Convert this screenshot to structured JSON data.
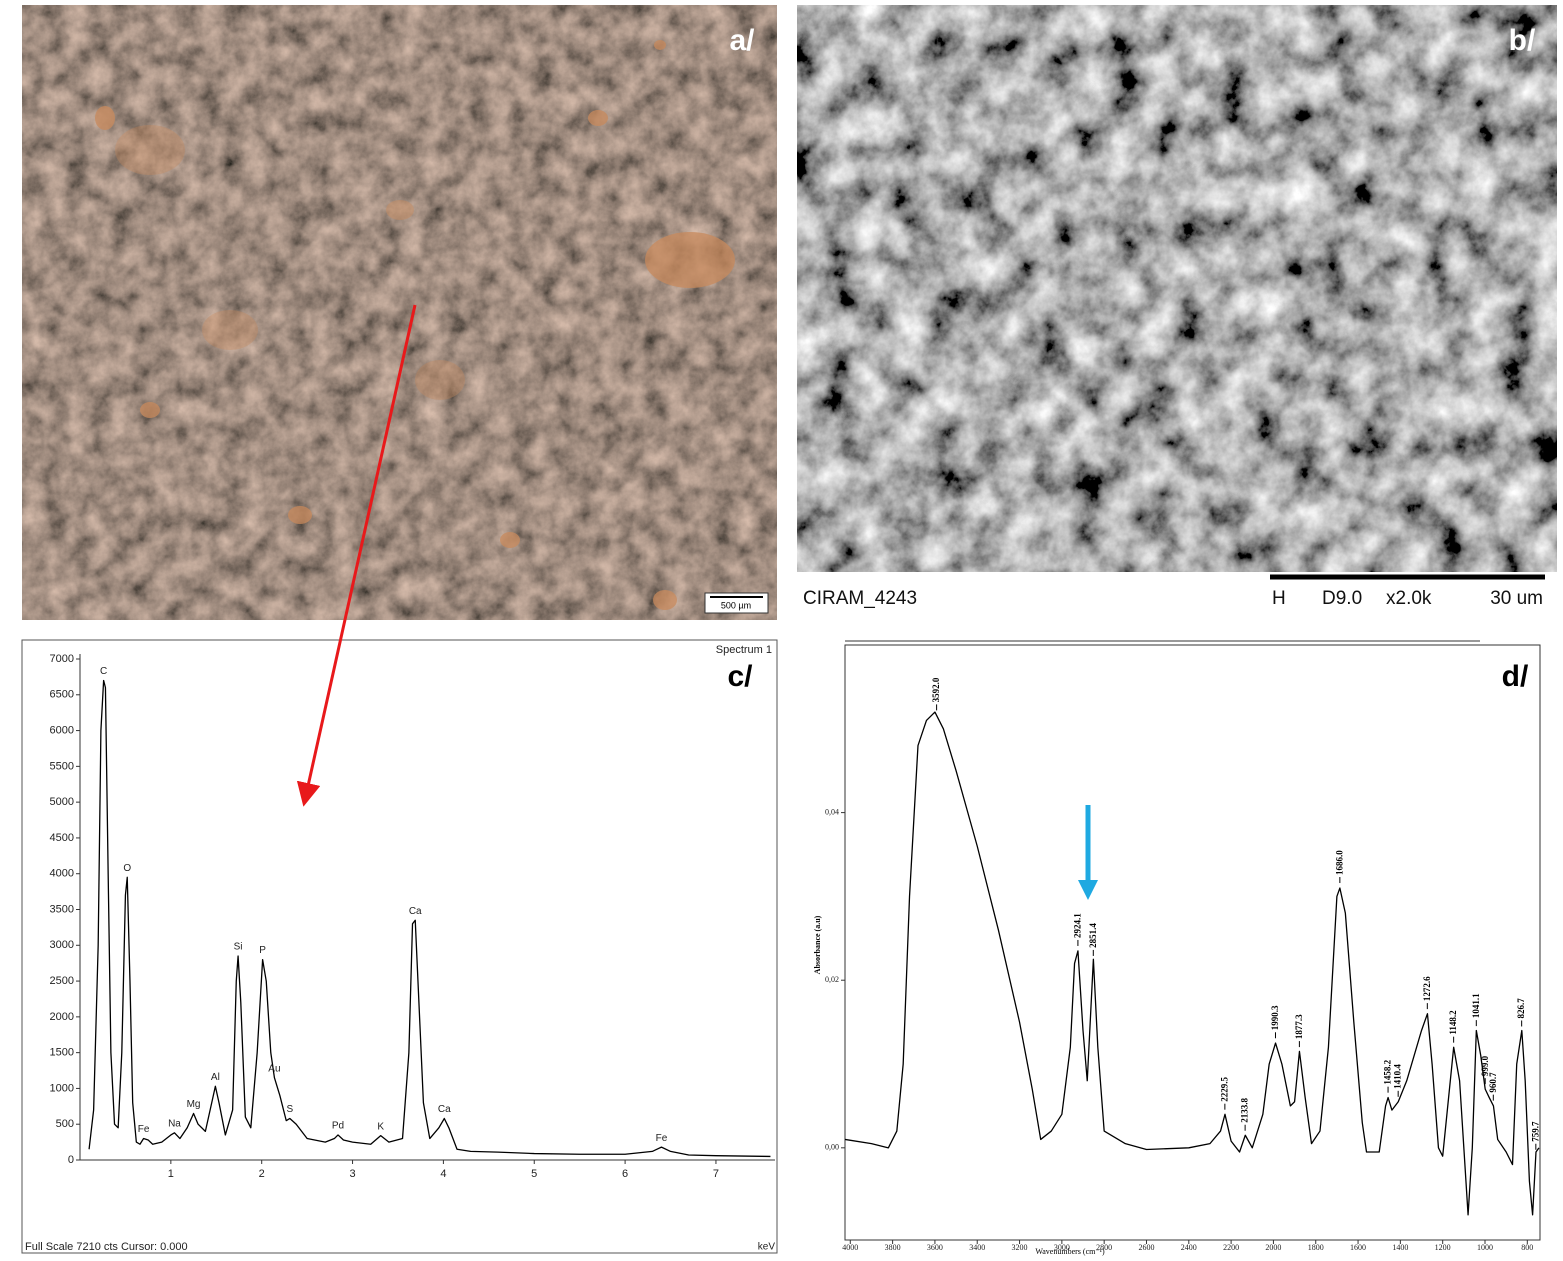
{
  "photos": {
    "a": {
      "label": "a/",
      "scale_bar": "500 µm"
    },
    "b": {
      "label": "b/",
      "caption": "CIRAM_4243",
      "detector": "H",
      "distance": "D9.0",
      "magnification": "x2.0k",
      "scale": "30 um"
    }
  },
  "chart_data": [
    {
      "type": "line",
      "panel_label": "c/",
      "title": "Spectrum 1",
      "footer": "Full Scale 7210 cts Cursor: 0.000",
      "xlabel": "keV",
      "color": "#000000",
      "x": [
        0.1,
        0.15,
        0.2,
        0.23,
        0.26,
        0.28,
        0.31,
        0.34,
        0.38,
        0.42,
        0.46,
        0.5,
        0.52,
        0.55,
        0.58,
        0.62,
        0.66,
        0.7,
        0.75,
        0.8,
        0.9,
        1.0,
        1.04,
        1.1,
        1.18,
        1.25,
        1.3,
        1.38,
        1.45,
        1.49,
        1.53,
        1.6,
        1.68,
        1.72,
        1.74,
        1.77,
        1.82,
        1.88,
        1.95,
        2.01,
        2.05,
        2.1,
        2.14,
        2.2,
        2.27,
        2.31,
        2.38,
        2.5,
        2.7,
        2.8,
        2.84,
        2.9,
        3.0,
        3.2,
        3.31,
        3.4,
        3.55,
        3.62,
        3.66,
        3.69,
        3.72,
        3.78,
        3.85,
        3.95,
        4.01,
        4.06,
        4.15,
        4.3,
        4.6,
        5.0,
        5.5,
        6.0,
        6.3,
        6.4,
        6.5,
        6.7,
        7.0,
        7.6
      ],
      "values": [
        150,
        700,
        3000,
        6000,
        6700,
        6600,
        4000,
        1500,
        500,
        450,
        1500,
        3700,
        3950,
        2500,
        800,
        250,
        220,
        300,
        280,
        220,
        250,
        350,
        380,
        300,
        450,
        650,
        500,
        400,
        800,
        1030,
        800,
        350,
        700,
        2500,
        2850,
        2200,
        600,
        450,
        1500,
        2800,
        2500,
        1500,
        1150,
        900,
        550,
        580,
        500,
        300,
        250,
        300,
        350,
        280,
        250,
        220,
        340,
        250,
        300,
        1500,
        3300,
        3350,
        2500,
        800,
        300,
        450,
        580,
        450,
        150,
        120,
        110,
        90,
        80,
        80,
        120,
        180,
        120,
        70,
        60,
        50
      ],
      "xlim": [
        0,
        7.65
      ],
      "ylim": [
        0,
        7000
      ],
      "xticks": [
        1,
        2,
        3,
        4,
        5,
        6,
        7
      ],
      "yticks": [
        0,
        500,
        1000,
        1500,
        2000,
        2500,
        3000,
        3500,
        4000,
        4500,
        5000,
        5500,
        6000,
        6500,
        7000
      ],
      "annotations": [
        {
          "text": "C",
          "x": 0.26
        },
        {
          "text": "O",
          "x": 0.52
        },
        {
          "text": "Fe",
          "x": 0.7
        },
        {
          "text": "Na",
          "x": 1.04
        },
        {
          "text": "Mg",
          "x": 1.25
        },
        {
          "text": "Al",
          "x": 1.49
        },
        {
          "text": "Si",
          "x": 1.74
        },
        {
          "text": "P",
          "x": 2.01
        },
        {
          "text": "Au",
          "x": 2.14
        },
        {
          "text": "S",
          "x": 2.31
        },
        {
          "text": "Pd",
          "x": 2.84
        },
        {
          "text": "K",
          "x": 3.31
        },
        {
          "text": "Ca",
          "x": 3.69
        },
        {
          "text": "Ca",
          "x": 4.01
        },
        {
          "text": "Fe",
          "x": 6.4
        }
      ]
    },
    {
      "type": "line",
      "panel_label": "d/",
      "xlabel": "Wavenumbers (cm⁻¹)",
      "ylabel": "Absorbance (a.u)",
      "color": "#000000",
      "x": [
        4025,
        3900,
        3820,
        3780,
        3750,
        3720,
        3680,
        3640,
        3600,
        3560,
        3500,
        3400,
        3300,
        3200,
        3140,
        3100,
        3050,
        3000,
        2960,
        2940,
        2924,
        2900,
        2880,
        2851,
        2830,
        2800,
        2700,
        2600,
        2400,
        2300,
        2250,
        2229,
        2200,
        2160,
        2133,
        2100,
        2050,
        2020,
        1990,
        1960,
        1920,
        1900,
        1877,
        1850,
        1820,
        1780,
        1740,
        1700,
        1686,
        1660,
        1620,
        1580,
        1560,
        1500,
        1470,
        1458,
        1440,
        1410,
        1370,
        1300,
        1272,
        1250,
        1220,
        1200,
        1180,
        1148,
        1120,
        1100,
        1080,
        1060,
        1041,
        1020,
        999,
        980,
        960,
        940,
        900,
        870,
        850,
        826,
        810,
        790,
        775,
        759,
        745
      ],
      "values": [
        0.001,
        0.0005,
        0.0,
        0.002,
        0.01,
        0.03,
        0.048,
        0.051,
        0.052,
        0.05,
        0.045,
        0.036,
        0.026,
        0.015,
        0.007,
        0.001,
        0.002,
        0.004,
        0.012,
        0.022,
        0.0235,
        0.014,
        0.008,
        0.0225,
        0.012,
        0.002,
        0.0005,
        -0.0002,
        0.0,
        0.0005,
        0.002,
        0.004,
        0.0008,
        -0.0005,
        0.0015,
        0.0,
        0.004,
        0.01,
        0.0125,
        0.01,
        0.005,
        0.0055,
        0.0115,
        0.006,
        0.0005,
        0.002,
        0.012,
        0.03,
        0.031,
        0.028,
        0.015,
        0.003,
        -0.0005,
        -0.0005,
        0.005,
        0.006,
        0.0045,
        0.0055,
        0.008,
        0.014,
        0.016,
        0.01,
        0.0,
        -0.001,
        0.004,
        0.012,
        0.008,
        0.0,
        -0.008,
        0.0,
        0.014,
        0.011,
        0.007,
        0.006,
        0.005,
        0.001,
        -0.0005,
        -0.002,
        0.01,
        0.014,
        0.008,
        -0.004,
        -0.008,
        -0.0005,
        0.0
      ],
      "xlim": [
        4025,
        740
      ],
      "ylim": [
        -0.011,
        0.06
      ],
      "xticks": [
        4000,
        3800,
        3600,
        3400,
        3200,
        3000,
        2800,
        2600,
        2400,
        2200,
        2000,
        1800,
        1600,
        1400,
        1200,
        1000,
        800
      ],
      "yticks": [
        {
          "value": 0,
          "label": "0,00"
        },
        {
          "value": 0.02,
          "label": "0,02"
        },
        {
          "value": 0.04,
          "label": "0,04"
        }
      ],
      "peak_labels": [
        {
          "value": 3592,
          "label": "3592.0"
        },
        {
          "value": 2924.1,
          "label": "2924.1"
        },
        {
          "value": 2851.4,
          "label": "2851.4"
        },
        {
          "value": 2229.5,
          "label": "2229.5"
        },
        {
          "value": 2133.8,
          "label": "2133.8"
        },
        {
          "value": 1990.3,
          "label": "1990.3"
        },
        {
          "value": 1877.3,
          "label": "1877.3"
        },
        {
          "value": 1686,
          "label": "1686.0"
        },
        {
          "value": 1458.2,
          "label": "1458.2"
        },
        {
          "value": 1410.4,
          "label": "1410.4"
        },
        {
          "value": 1272.6,
          "label": "1272.6"
        },
        {
          "value": 1148.2,
          "label": "1148.2"
        },
        {
          "value": 1041.1,
          "label": "1041.1"
        },
        {
          "value": 999,
          "label": "999.0"
        },
        {
          "value": 960.7,
          "label": "960.7"
        },
        {
          "value": 826.7,
          "label": "826.7"
        },
        {
          "value": 759.7,
          "label": "759.7"
        }
      ]
    }
  ]
}
